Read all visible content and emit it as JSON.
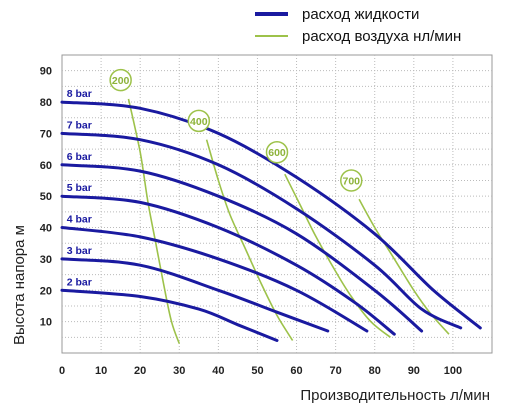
{
  "chart_data": {
    "type": "line",
    "xlabel": "Производительность  л/мин",
    "ylabel": "Высота напора м",
    "xlim": [
      0,
      110
    ],
    "ylim": [
      0,
      95
    ],
    "x_ticks": [
      0,
      10,
      20,
      30,
      40,
      50,
      60,
      70,
      80,
      90,
      100
    ],
    "y_ticks": [
      10,
      20,
      30,
      40,
      50,
      60,
      70,
      80,
      90
    ],
    "grid": true,
    "legend": [
      {
        "label": "расход жидкости",
        "color": "#1a1aa0"
      },
      {
        "label": "расход воздуха нл/мин",
        "color": "#9dc24a"
      }
    ],
    "liquid_series": [
      {
        "name": "8 bar",
        "color": "#1a1aa0",
        "points": [
          [
            0,
            80
          ],
          [
            20,
            78
          ],
          [
            40,
            70
          ],
          [
            60,
            56
          ],
          [
            80,
            38
          ],
          [
            95,
            20
          ],
          [
            107,
            8
          ]
        ]
      },
      {
        "name": "7 bar",
        "color": "#1a1aa0",
        "points": [
          [
            0,
            70
          ],
          [
            20,
            68
          ],
          [
            40,
            60
          ],
          [
            60,
            46
          ],
          [
            80,
            28
          ],
          [
            92,
            14
          ],
          [
            102,
            8
          ]
        ]
      },
      {
        "name": "6 bar",
        "color": "#1a1aa0",
        "points": [
          [
            0,
            60
          ],
          [
            20,
            58
          ],
          [
            40,
            50
          ],
          [
            60,
            38
          ],
          [
            80,
            20
          ],
          [
            92,
            7
          ]
        ]
      },
      {
        "name": "5 bar",
        "color": "#1a1aa0",
        "points": [
          [
            0,
            50
          ],
          [
            20,
            48
          ],
          [
            40,
            40
          ],
          [
            60,
            28
          ],
          [
            75,
            16
          ],
          [
            85,
            6
          ]
        ]
      },
      {
        "name": "4 bar",
        "color": "#1a1aa0",
        "points": [
          [
            0,
            40
          ],
          [
            20,
            37
          ],
          [
            40,
            30
          ],
          [
            60,
            20
          ],
          [
            78,
            7
          ]
        ]
      },
      {
        "name": "3 bar",
        "color": "#1a1aa0",
        "points": [
          [
            0,
            30
          ],
          [
            20,
            28
          ],
          [
            40,
            20
          ],
          [
            55,
            13
          ],
          [
            68,
            7
          ]
        ]
      },
      {
        "name": "2 bar",
        "color": "#1a1aa0",
        "points": [
          [
            0,
            20
          ],
          [
            20,
            18
          ],
          [
            35,
            14
          ],
          [
            45,
            9
          ],
          [
            55,
            4
          ]
        ]
      }
    ],
    "air_series": [
      {
        "name": "200",
        "color": "#9dc24a",
        "label_at": [
          15,
          87
        ],
        "points": [
          [
            17,
            81
          ],
          [
            20,
            64
          ],
          [
            22,
            48
          ],
          [
            24,
            35
          ],
          [
            26,
            22
          ],
          [
            28,
            10
          ],
          [
            30,
            3
          ]
        ]
      },
      {
        "name": "400",
        "color": "#9dc24a",
        "label_at": [
          35,
          74
        ],
        "points": [
          [
            37,
            68
          ],
          [
            40,
            55
          ],
          [
            43,
            44
          ],
          [
            47,
            33
          ],
          [
            51,
            22
          ],
          [
            55,
            12
          ],
          [
            59,
            4
          ]
        ]
      },
      {
        "name": "600",
        "color": "#9dc24a",
        "label_at": [
          55,
          64
        ],
        "points": [
          [
            57,
            57
          ],
          [
            61,
            47
          ],
          [
            65,
            37
          ],
          [
            70,
            26
          ],
          [
            74,
            18
          ],
          [
            79,
            10
          ],
          [
            84,
            5
          ]
        ]
      },
      {
        "name": "700",
        "color": "#9dc24a",
        "label_at": [
          74,
          55
        ],
        "points": [
          [
            76,
            49
          ],
          [
            80,
            40
          ],
          [
            85,
            30
          ],
          [
            90,
            20
          ],
          [
            94,
            13
          ],
          [
            99,
            6
          ]
        ]
      }
    ]
  }
}
